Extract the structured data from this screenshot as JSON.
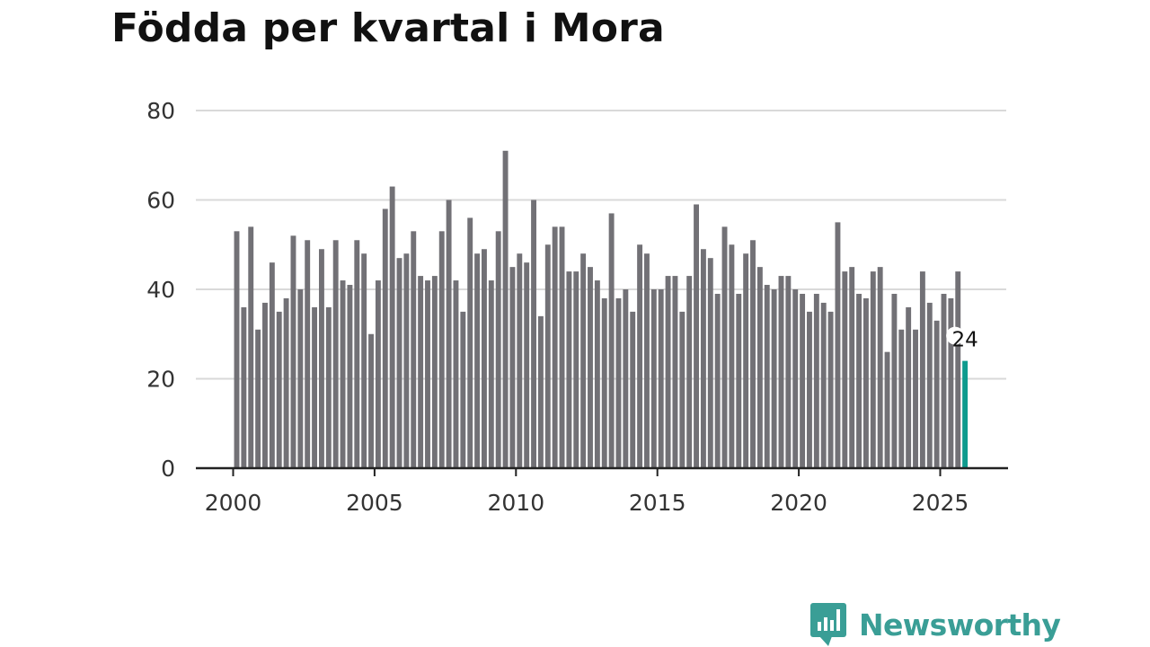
{
  "title": "Födda per kvartal i Mora",
  "brand": {
    "name": "Newsworthy",
    "icon": "bar-chart-speech-bubble-icon",
    "color": "#3a9e96"
  },
  "chart_data": {
    "type": "bar",
    "title": "Födda per kvartal i Mora",
    "xlabel": "",
    "ylabel": "",
    "ylim": [
      0,
      80
    ],
    "yticks": [
      0,
      20,
      40,
      60,
      80
    ],
    "xticks": [
      "2000",
      "2005",
      "2010",
      "2015",
      "2020",
      "2025"
    ],
    "grid": true,
    "legend": "none",
    "bar_color": "#727176",
    "highlight_color": "#0e9b8e",
    "highlight_index": 103,
    "highlight_label": "24",
    "categories": [
      "2000 Q1",
      "2000 Q2",
      "2000 Q3",
      "2000 Q4",
      "2001 Q1",
      "2001 Q2",
      "2001 Q3",
      "2001 Q4",
      "2002 Q1",
      "2002 Q2",
      "2002 Q3",
      "2002 Q4",
      "2003 Q1",
      "2003 Q2",
      "2003 Q3",
      "2003 Q4",
      "2004 Q1",
      "2004 Q2",
      "2004 Q3",
      "2004 Q4",
      "2005 Q1",
      "2005 Q2",
      "2005 Q3",
      "2005 Q4",
      "2006 Q1",
      "2006 Q2",
      "2006 Q3",
      "2006 Q4",
      "2007 Q1",
      "2007 Q2",
      "2007 Q3",
      "2007 Q4",
      "2008 Q1",
      "2008 Q2",
      "2008 Q3",
      "2008 Q4",
      "2009 Q1",
      "2009 Q2",
      "2009 Q3",
      "2009 Q4",
      "2010 Q1",
      "2010 Q2",
      "2010 Q3",
      "2010 Q4",
      "2011 Q1",
      "2011 Q2",
      "2011 Q3",
      "2011 Q4",
      "2012 Q1",
      "2012 Q2",
      "2012 Q3",
      "2012 Q4",
      "2013 Q1",
      "2013 Q2",
      "2013 Q3",
      "2013 Q4",
      "2014 Q1",
      "2014 Q2",
      "2014 Q3",
      "2014 Q4",
      "2015 Q1",
      "2015 Q2",
      "2015 Q3",
      "2015 Q4",
      "2016 Q1",
      "2016 Q2",
      "2016 Q3",
      "2016 Q4",
      "2017 Q1",
      "2017 Q2",
      "2017 Q3",
      "2017 Q4",
      "2018 Q1",
      "2018 Q2",
      "2018 Q3",
      "2018 Q4",
      "2019 Q1",
      "2019 Q2",
      "2019 Q3",
      "2019 Q4",
      "2020 Q1",
      "2020 Q2",
      "2020 Q3",
      "2020 Q4",
      "2021 Q1",
      "2021 Q2",
      "2021 Q3",
      "2021 Q4",
      "2022 Q1",
      "2022 Q2",
      "2022 Q3",
      "2022 Q4",
      "2023 Q1",
      "2023 Q2",
      "2023 Q3",
      "2023 Q4",
      "2024 Q1",
      "2024 Q2",
      "2024 Q3",
      "2024 Q4",
      "2025 Q1",
      "2025 Q2",
      "2025 Q3",
      "2025 Q4"
    ],
    "values": [
      53,
      36,
      54,
      31,
      37,
      46,
      35,
      38,
      52,
      40,
      51,
      36,
      49,
      36,
      51,
      42,
      41,
      51,
      48,
      30,
      42,
      58,
      63,
      47,
      48,
      53,
      43,
      42,
      43,
      53,
      60,
      42,
      35,
      56,
      48,
      49,
      42,
      53,
      71,
      45,
      48,
      46,
      60,
      34,
      50,
      54,
      54,
      44,
      44,
      48,
      45,
      42,
      38,
      57,
      38,
      40,
      35,
      50,
      48,
      40,
      40,
      43,
      43,
      35,
      43,
      59,
      49,
      47,
      39,
      54,
      50,
      39,
      48,
      51,
      45,
      41,
      40,
      43,
      43,
      40,
      39,
      35,
      39,
      37,
      35,
      55,
      44,
      45,
      39,
      38,
      44,
      45,
      26,
      39,
      31,
      36,
      31,
      44,
      37,
      33,
      39,
      38,
      44,
      24
    ]
  }
}
